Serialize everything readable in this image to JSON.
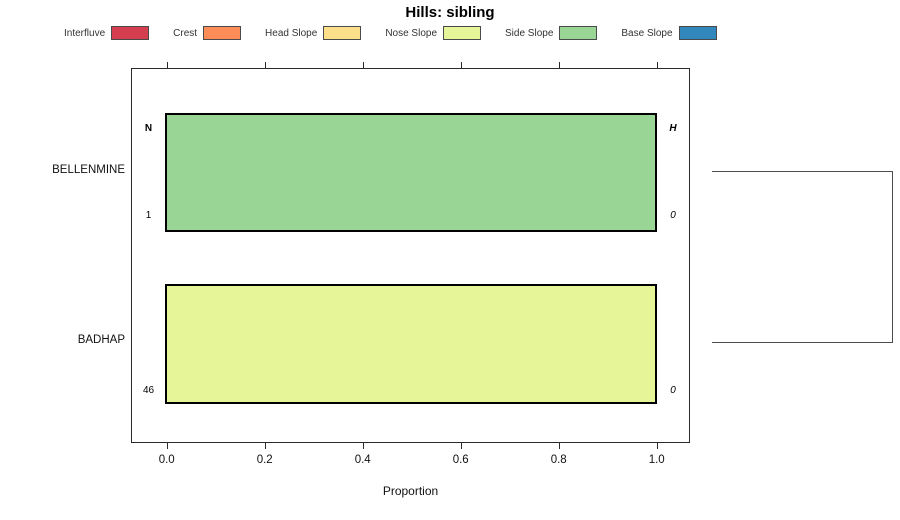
{
  "title": "Hills: sibling",
  "legend": {
    "items": [
      {
        "label": "Interfluve",
        "color": "#D53E4F"
      },
      {
        "label": "Crest",
        "color": "#FC8D59"
      },
      {
        "label": "Head Slope",
        "color": "#FEE08B"
      },
      {
        "label": "Nose Slope",
        "color": "#E6F598"
      },
      {
        "label": "Side Slope",
        "color": "#99D594"
      },
      {
        "label": "Base Slope",
        "color": "#3288BD"
      }
    ]
  },
  "axis": {
    "label": "Proportion",
    "ticks": [
      "0.0",
      "0.2",
      "0.4",
      "0.6",
      "0.8",
      "1.0"
    ],
    "tick_values": [
      0,
      0.2,
      0.4,
      0.6,
      0.8,
      1.0
    ],
    "range": [
      0,
      1
    ]
  },
  "columns": {
    "n_header": "N",
    "h_header": "H"
  },
  "rows": [
    {
      "name": "BELLENMINE",
      "n_value": "1",
      "h_value": "0",
      "category": "Side Slope",
      "color": "#99D594",
      "proportion": 1.0
    },
    {
      "name": "BADHAP",
      "n_value": "46",
      "h_value": "0",
      "category": "Nose Slope",
      "color": "#E6F598",
      "proportion": 1.0
    }
  ],
  "chart_data": {
    "type": "bar",
    "orientation": "horizontal",
    "title": "Hills: sibling",
    "xlabel": "Proportion",
    "xlim": [
      0,
      1
    ],
    "x_ticks": [
      0,
      0.2,
      0.4,
      0.6,
      0.8,
      1.0
    ],
    "categories": [
      "BELLENMINE",
      "BADHAP"
    ],
    "legend_position": "top",
    "grid": false,
    "series": [
      {
        "name": "Interfluve",
        "color": "#D53E4F",
        "values": [
          0,
          0
        ]
      },
      {
        "name": "Crest",
        "color": "#FC8D59",
        "values": [
          0,
          0
        ]
      },
      {
        "name": "Head Slope",
        "color": "#FEE08B",
        "values": [
          0,
          0
        ]
      },
      {
        "name": "Nose Slope",
        "color": "#E6F598",
        "values": [
          0,
          1.0
        ]
      },
      {
        "name": "Side Slope",
        "color": "#99D594",
        "values": [
          1.0,
          0
        ]
      },
      {
        "name": "Base Slope",
        "color": "#3288BD",
        "values": [
          0,
          0
        ]
      }
    ],
    "annotations": {
      "N_counts": [
        1,
        46
      ],
      "H_values": [
        0,
        0
      ],
      "dendrogram": "two-leaf bracket joining BELLENMINE and BADHAP at right edge"
    }
  }
}
